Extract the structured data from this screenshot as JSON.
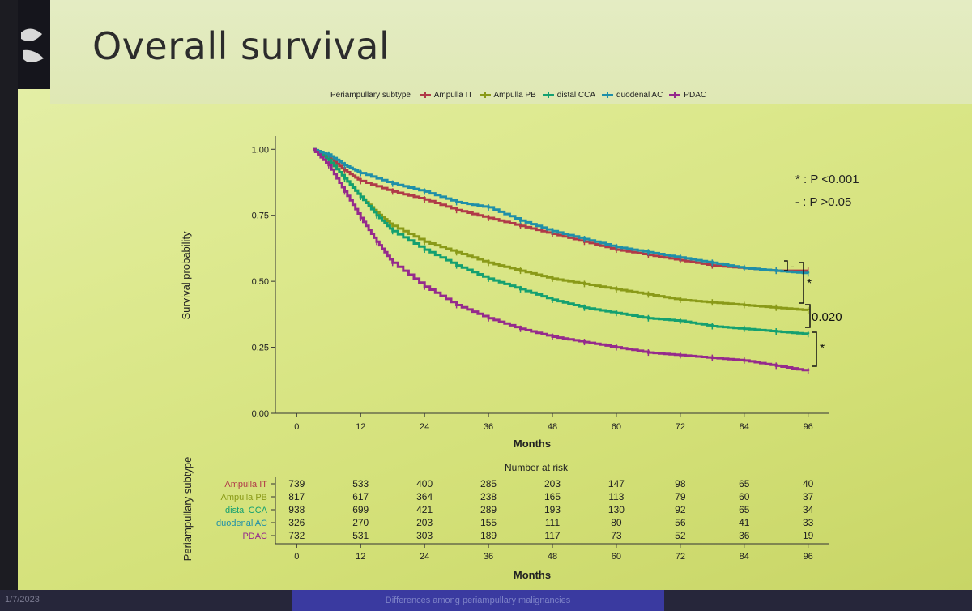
{
  "slide": {
    "title": "Overall survival"
  },
  "footer": {
    "date": "1/7/2023",
    "caption": "Differences among periampullary malignancies"
  },
  "legend": {
    "title": "Periampullary subtype"
  },
  "annotations": {
    "sig_star": "* : P <0.001",
    "sig_dash": "- : P >0.05",
    "pval": "0.020",
    "bracket1": "-",
    "bracket2": "*",
    "bracket3": "*"
  },
  "risk_table": {
    "title": "Number at risk",
    "ylabel": "Periampullary subtype",
    "xlabel": "Months",
    "rows": [
      {
        "name": "Ampulla IT",
        "values": [
          739,
          533,
          400,
          285,
          203,
          147,
          98,
          65,
          40
        ]
      },
      {
        "name": "Ampulla PB",
        "values": [
          817,
          617,
          364,
          238,
          165,
          113,
          79,
          60,
          37
        ]
      },
      {
        "name": "distal CCA",
        "values": [
          938,
          699,
          421,
          289,
          193,
          130,
          92,
          65,
          34
        ]
      },
      {
        "name": "duodenal AC",
        "values": [
          326,
          270,
          203,
          155,
          111,
          80,
          56,
          41,
          33
        ]
      },
      {
        "name": "PDAC",
        "values": [
          732,
          531,
          303,
          189,
          117,
          73,
          52,
          36,
          19
        ]
      }
    ]
  },
  "chart_data": {
    "type": "line",
    "title": "",
    "xlabel": "Months",
    "ylabel": "Survival probability",
    "xlim": [
      -4,
      100
    ],
    "ylim": [
      0,
      1.05
    ],
    "xticks": [
      0,
      12,
      24,
      36,
      48,
      60,
      72,
      84,
      96
    ],
    "yticks": [
      0.0,
      0.25,
      0.5,
      0.75,
      1.0
    ],
    "ytick_labels": [
      "0.00",
      "0.25",
      "0.50",
      "0.75",
      "1.00"
    ],
    "legend_position": "top",
    "series": [
      {
        "name": "Ampulla IT",
        "color": "#b03a48",
        "x": [
          3,
          6,
          9,
          12,
          18,
          24,
          30,
          36,
          42,
          48,
          54,
          60,
          66,
          72,
          78,
          84,
          90,
          96
        ],
        "y": [
          1.0,
          0.97,
          0.92,
          0.88,
          0.84,
          0.81,
          0.77,
          0.74,
          0.71,
          0.68,
          0.65,
          0.62,
          0.6,
          0.58,
          0.56,
          0.55,
          0.54,
          0.54
        ]
      },
      {
        "name": "Ampulla PB",
        "color": "#8a9a18",
        "x": [
          3,
          6,
          9,
          12,
          15,
          18,
          24,
          30,
          36,
          42,
          48,
          54,
          60,
          66,
          72,
          78,
          84,
          90,
          96
        ],
        "y": [
          1.0,
          0.96,
          0.89,
          0.82,
          0.76,
          0.71,
          0.65,
          0.61,
          0.57,
          0.54,
          0.51,
          0.49,
          0.47,
          0.45,
          0.43,
          0.42,
          0.41,
          0.4,
          0.39
        ]
      },
      {
        "name": "distal CCA",
        "color": "#14a070",
        "x": [
          3,
          6,
          9,
          12,
          15,
          18,
          24,
          30,
          36,
          42,
          48,
          54,
          60,
          66,
          72,
          78,
          84,
          90,
          96
        ],
        "y": [
          1.0,
          0.96,
          0.89,
          0.82,
          0.75,
          0.69,
          0.62,
          0.56,
          0.51,
          0.47,
          0.43,
          0.4,
          0.38,
          0.36,
          0.35,
          0.33,
          0.32,
          0.31,
          0.3
        ]
      },
      {
        "name": "duodenal AC",
        "color": "#1f8fa8",
        "x": [
          3,
          6,
          9,
          12,
          18,
          24,
          30,
          36,
          42,
          48,
          54,
          60,
          66,
          72,
          78,
          84,
          90,
          96
        ],
        "y": [
          1.0,
          0.98,
          0.94,
          0.91,
          0.87,
          0.84,
          0.8,
          0.78,
          0.73,
          0.69,
          0.66,
          0.63,
          0.61,
          0.59,
          0.57,
          0.55,
          0.54,
          0.53
        ]
      },
      {
        "name": "PDAC",
        "color": "#952a8c",
        "x": [
          3,
          6,
          9,
          12,
          15,
          18,
          24,
          30,
          36,
          42,
          48,
          54,
          60,
          66,
          72,
          78,
          84,
          90,
          96
        ],
        "y": [
          1.0,
          0.94,
          0.84,
          0.74,
          0.65,
          0.57,
          0.48,
          0.41,
          0.36,
          0.32,
          0.29,
          0.27,
          0.25,
          0.23,
          0.22,
          0.21,
          0.2,
          0.18,
          0.16
        ]
      }
    ]
  }
}
